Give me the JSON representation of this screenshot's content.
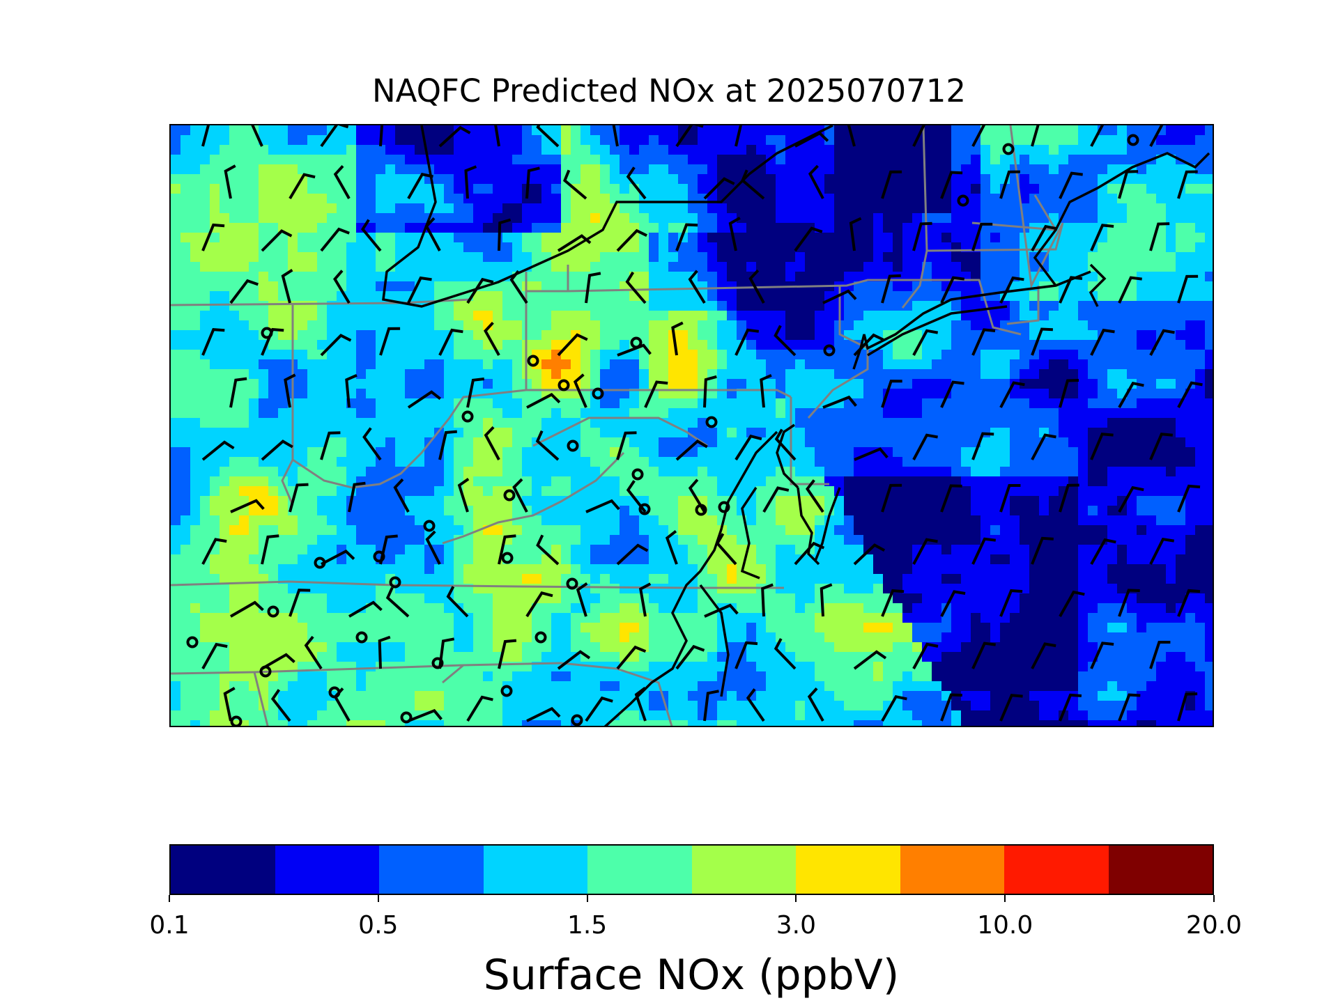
{
  "title": "NAQFC Predicted NOx at 2025070712",
  "colorbar": {
    "label": "Surface NOx (ppbV)",
    "colors": [
      "#00007f",
      "#0000f5",
      "#0060ff",
      "#00d4ff",
      "#4dffaa",
      "#a4ff4a",
      "#ffe500",
      "#ff7f00",
      "#ff1a00",
      "#7f0000"
    ],
    "tick_labels": [
      "0.1",
      "0.5",
      "1.5",
      "3.0",
      "10.0",
      "20.0"
    ]
  },
  "map": {
    "variable": "Surface NOx",
    "units": "ppbV",
    "features": [
      "coastlines",
      "state-boundaries",
      "wind-barbs",
      "monitor-sites"
    ]
  }
}
